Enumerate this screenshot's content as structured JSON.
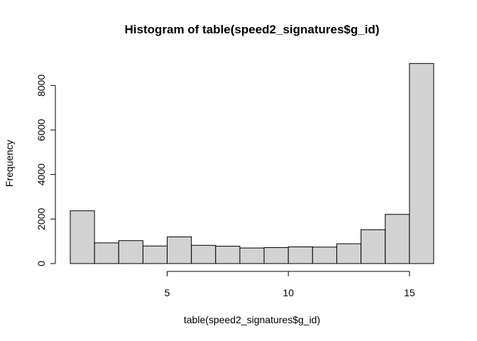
{
  "chart_data": {
    "type": "bar",
    "title": "Histogram of table(speed2_signatures$g_id)",
    "xlabel": "table(speed2_signatures$g_id)",
    "ylabel": "Frequency",
    "bin_edges": [
      1,
      2,
      3,
      4,
      5,
      6,
      7,
      8,
      9,
      10,
      11,
      12,
      13,
      14,
      15,
      16
    ],
    "values": [
      2370,
      930,
      1030,
      790,
      1200,
      820,
      780,
      700,
      720,
      750,
      740,
      890,
      1520,
      2210,
      8990
    ],
    "xticks": [
      5,
      10,
      15
    ],
    "yticks": [
      0,
      2000,
      4000,
      6000,
      8000
    ],
    "xlim": [
      1,
      16
    ],
    "ylim": [
      0,
      9000
    ],
    "bar_fill": "#d3d3d3",
    "bar_stroke": "#000000"
  }
}
